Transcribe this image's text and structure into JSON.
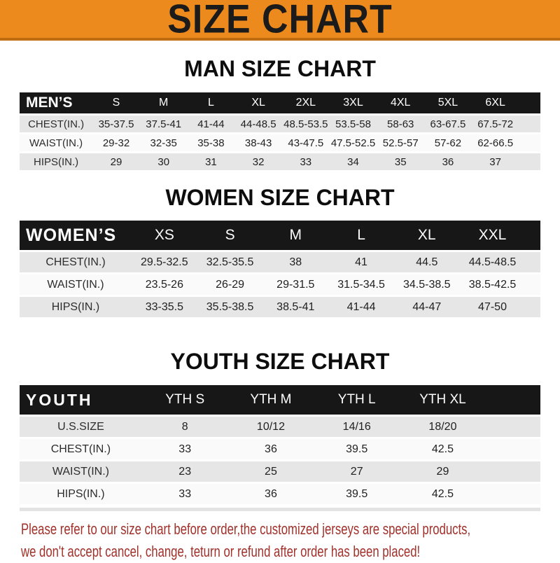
{
  "banner": {
    "title": "SIZE CHART",
    "bg_color": "#ED8A1D",
    "border_color": "#C06C10",
    "text_color": "#1b1b1b"
  },
  "colors": {
    "band_black": "#171717",
    "row_gray": "#E6E6E6",
    "row_light": "#FAFAFA",
    "footer_red": "#A1312A"
  },
  "sections": [
    {
      "heading": "MAN SIZE CHART",
      "table": {
        "header_label": "MEN’S",
        "columns": [
          "S",
          "M",
          "L",
          "XL",
          "2XL",
          "3XL",
          "4XL",
          "5XL",
          "6XL"
        ],
        "rows": [
          {
            "label": "CHEST(IN.)",
            "values": [
              "35-37.5",
              "37.5-41",
              "41-44",
              "44-48.5",
              "48.5-53.5",
              "53.5-58",
              "58-63",
              "63-67.5",
              "67.5-72"
            ]
          },
          {
            "label": "WAIST(IN.)",
            "values": [
              "29-32",
              "32-35",
              "35-38",
              "38-43",
              "43-47.5",
              "47.5-52.5",
              "52.5-57",
              "57-62",
              "62-66.5"
            ]
          },
          {
            "label": "HIPS(IN.)",
            "values": [
              "29",
              "30",
              "31",
              "32",
              "33",
              "34",
              "35",
              "36",
              "37"
            ]
          }
        ]
      }
    },
    {
      "heading": "WOMEN SIZE CHART",
      "table": {
        "header_label": "WOMEN’S",
        "columns": [
          "XS",
          "S",
          "M",
          "L",
          "XL",
          "XXL"
        ],
        "rows": [
          {
            "label": "CHEST(IN.)",
            "values": [
              "29.5-32.5",
              "32.5-35.5",
              "38",
              "41",
              "44.5",
              "44.5-48.5"
            ]
          },
          {
            "label": "WAIST(IN.)",
            "values": [
              "23.5-26",
              "26-29",
              "29-31.5",
              "31.5-34.5",
              "34.5-38.5",
              "38.5-42.5"
            ]
          },
          {
            "label": "HIPS(IN.)",
            "values": [
              "33-35.5",
              "35.5-38.5",
              "38.5-41",
              "41-44",
              "44-47",
              "47-50"
            ]
          }
        ]
      }
    },
    {
      "heading": "YOUTH SIZE CHART",
      "table": {
        "header_label": "YOUTH",
        "columns": [
          "YTH S",
          "YTH M",
          "YTH L",
          "YTH XL"
        ],
        "rows": [
          {
            "label": "U.S.SIZE",
            "values": [
              "8",
              "10/12",
              "14/16",
              "18/20"
            ]
          },
          {
            "label": "CHEST(IN.)",
            "values": [
              "33",
              "36",
              "39.5",
              "42.5"
            ]
          },
          {
            "label": "WAIST(IN.)",
            "values": [
              "23",
              "25",
              "27",
              "29"
            ]
          },
          {
            "label": "HIPS(IN.)",
            "values": [
              "33",
              "36",
              "39.5",
              "42.5"
            ]
          }
        ]
      }
    }
  ],
  "footer": {
    "line1": "Please refer to our size chart before order,the customized jerseys are special products,",
    "line2": "we don't accept cancel, change, teturn or refund after order has been placed!"
  }
}
